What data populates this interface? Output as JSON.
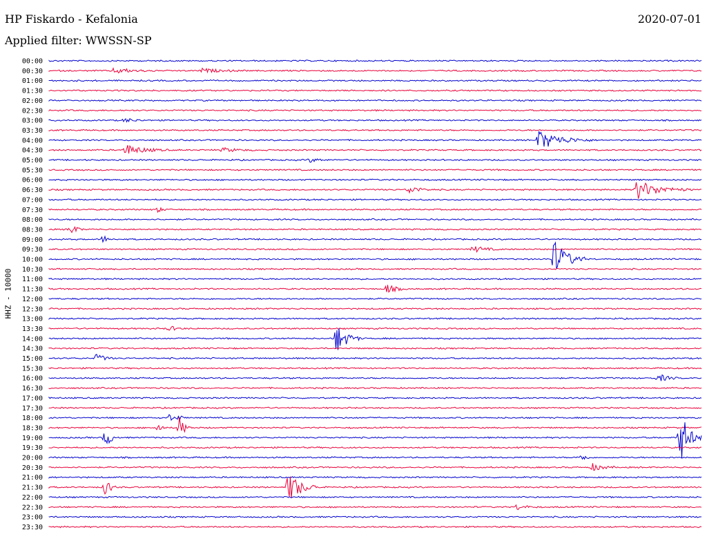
{
  "header": {
    "station": "HP Fiskardo - Kefalonia",
    "date": "2020-07-01",
    "filter_label": "Applied filter: WWSSN-SP",
    "channel_label": "HHZ - 10000"
  },
  "colors": {
    "even_trace": "#0000cc",
    "odd_trace": "#e8003a"
  },
  "chart_data": {
    "type": "line",
    "title": "HP Fiskardo - Kefalonia",
    "rows": [
      "00:00",
      "00:30",
      "01:00",
      "01:30",
      "02:00",
      "02:30",
      "03:00",
      "03:30",
      "04:00",
      "04:30",
      "05:00",
      "05:30",
      "06:00",
      "06:30",
      "07:00",
      "07:30",
      "08:00",
      "08:30",
      "09:00",
      "09:30",
      "10:00",
      "10:30",
      "11:00",
      "11:30",
      "12:00",
      "12:30",
      "13:00",
      "13:30",
      "14:00",
      "14:30",
      "15:00",
      "15:30",
      "16:00",
      "16:30",
      "17:00",
      "17:30",
      "18:00",
      "18:30",
      "19:00",
      "19:30",
      "20:00",
      "20:30",
      "21:00",
      "21:30",
      "22:00",
      "22:30",
      "23:00",
      "23:30"
    ],
    "row_colors": "alternating blue/red",
    "minutes_per_row": 30,
    "events": [
      {
        "row": "00:30",
        "minute": 3.0,
        "amp": 4,
        "dur": 2.0
      },
      {
        "row": "00:30",
        "minute": 7.0,
        "amp": 3,
        "dur": 2.0
      },
      {
        "row": "03:00",
        "minute": 3.5,
        "amp": 3,
        "dur": 1.0
      },
      {
        "row": "04:00",
        "minute": 22.5,
        "amp": 14,
        "dur": 2.5
      },
      {
        "row": "04:30",
        "minute": 3.5,
        "amp": 8,
        "dur": 2.0
      },
      {
        "row": "04:30",
        "minute": 8.0,
        "amp": 3,
        "dur": 1.5
      },
      {
        "row": "05:00",
        "minute": 12.0,
        "amp": 3,
        "dur": 1.0
      },
      {
        "row": "06:30",
        "minute": 16.5,
        "amp": 6,
        "dur": 1.2
      },
      {
        "row": "06:30",
        "minute": 27.0,
        "amp": 14,
        "dur": 2.5
      },
      {
        "row": "07:30",
        "minute": 5.0,
        "amp": 4,
        "dur": 0.5
      },
      {
        "row": "08:30",
        "minute": 1.0,
        "amp": 9,
        "dur": 0.6
      },
      {
        "row": "09:00",
        "minute": 2.5,
        "amp": 6,
        "dur": 0.4
      },
      {
        "row": "09:30",
        "minute": 19.5,
        "amp": 5,
        "dur": 1.2
      },
      {
        "row": "10:00",
        "minute": 23.2,
        "amp": 28,
        "dur": 1.5
      },
      {
        "row": "11:30",
        "minute": 15.5,
        "amp": 7,
        "dur": 1.0
      },
      {
        "row": "13:30",
        "minute": 5.5,
        "amp": 4,
        "dur": 0.8
      },
      {
        "row": "14:00",
        "minute": 13.2,
        "amp": 22,
        "dur": 1.2
      },
      {
        "row": "15:00",
        "minute": 2.2,
        "amp": 7,
        "dur": 0.8
      },
      {
        "row": "16:00",
        "minute": 28.0,
        "amp": 6,
        "dur": 1.0
      },
      {
        "row": "18:00",
        "minute": 5.5,
        "amp": 7,
        "dur": 0.4
      },
      {
        "row": "18:00",
        "minute": 6.0,
        "amp": 5,
        "dur": 0.3
      },
      {
        "row": "18:30",
        "minute": 5.0,
        "amp": 9,
        "dur": 0.4
      },
      {
        "row": "18:30",
        "minute": 6.0,
        "amp": 16,
        "dur": 0.6
      },
      {
        "row": "19:00",
        "minute": 2.6,
        "amp": 16,
        "dur": 0.6
      },
      {
        "row": "19:00",
        "minute": 29.0,
        "amp": 40,
        "dur": 1.0
      },
      {
        "row": "20:00",
        "minute": 24.5,
        "amp": 8,
        "dur": 0.4
      },
      {
        "row": "20:30",
        "minute": 25.0,
        "amp": 6,
        "dur": 1.0
      },
      {
        "row": "21:30",
        "minute": 2.6,
        "amp": 16,
        "dur": 0.5
      },
      {
        "row": "21:30",
        "minute": 11.0,
        "amp": 22,
        "dur": 1.5
      },
      {
        "row": "22:30",
        "minute": 21.5,
        "amp": 4,
        "dur": 1.0
      }
    ]
  }
}
